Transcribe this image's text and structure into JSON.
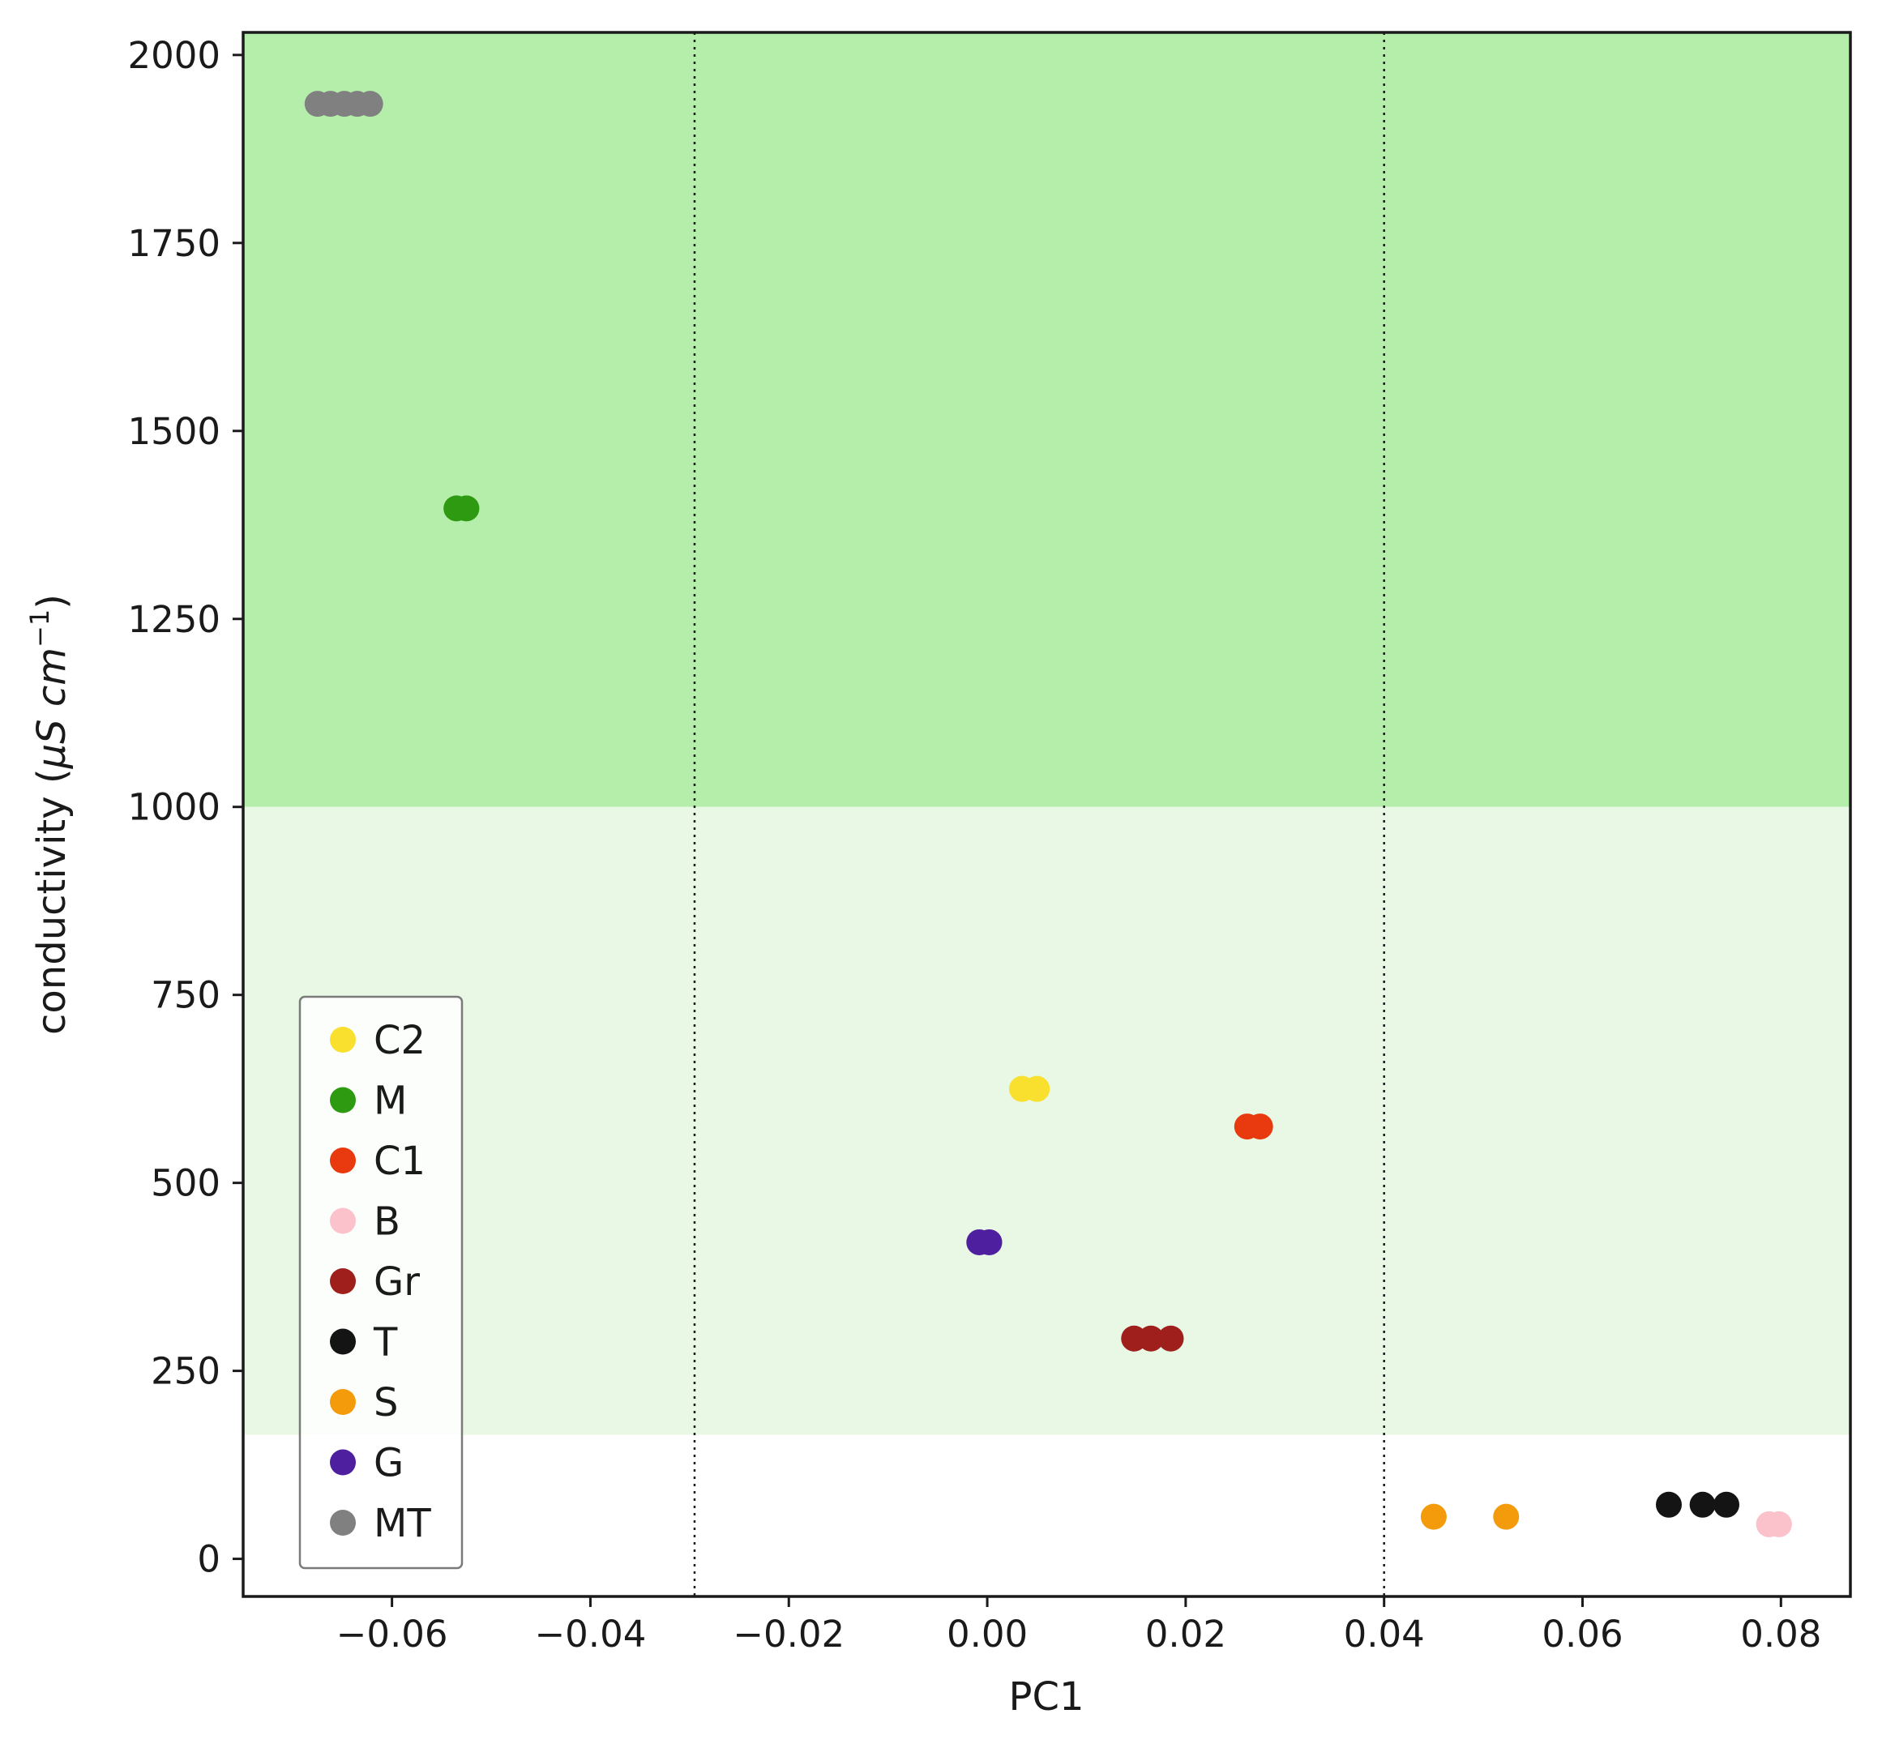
{
  "chart_data": {
    "type": "scatter",
    "xlabel": "PC1",
    "ylabel_prefix": "conductivity (",
    "ylabel_unit_mu": "μS",
    "ylabel_unit_cm": "cm",
    "ylabel_unit_exp": "−1",
    "ylabel_suffix": ")",
    "xlim": [
      -0.075,
      0.087
    ],
    "ylim": [
      -50,
      2030
    ],
    "xticks": [
      -0.06,
      -0.04,
      -0.02,
      0.0,
      0.02,
      0.04,
      0.06,
      0.08
    ],
    "xtick_labels": [
      "−0.06",
      "−0.04",
      "−0.02",
      "0.00",
      "0.02",
      "0.04",
      "0.06",
      "0.08"
    ],
    "yticks": [
      0,
      250,
      500,
      750,
      1000,
      1250,
      1500,
      1750,
      2000
    ],
    "ytick_labels": [
      "0",
      "250",
      "500",
      "750",
      "1000",
      "1250",
      "1500",
      "1750",
      "2000"
    ],
    "grid": false,
    "legend_position": "lower-left",
    "bands": [
      {
        "y0": 1000,
        "y1": 2030,
        "color": "#b5eeaa"
      },
      {
        "y0": 165,
        "y1": 1000,
        "color": "#e8f8e4"
      }
    ],
    "vlines": [
      -0.0295,
      0.04
    ],
    "series": [
      {
        "name": "C2",
        "color": "#f9e02e",
        "points": [
          [
            0.0035,
            625
          ],
          [
            0.005,
            625
          ]
        ]
      },
      {
        "name": "M",
        "color": "#2e9a12",
        "points": [
          [
            -0.0535,
            1397
          ],
          [
            -0.0525,
            1397
          ]
        ]
      },
      {
        "name": "C1",
        "color": "#e83a0e",
        "points": [
          [
            0.0262,
            575
          ],
          [
            0.0275,
            575
          ]
        ]
      },
      {
        "name": "B",
        "color": "#fbc2cb",
        "points": [
          [
            0.0788,
            46
          ],
          [
            0.0798,
            46
          ]
        ]
      },
      {
        "name": "Gr",
        "color": "#9e1f1b",
        "points": [
          [
            0.0148,
            293
          ],
          [
            0.0165,
            293
          ],
          [
            0.0185,
            293
          ]
        ]
      },
      {
        "name": "T",
        "color": "#141414",
        "points": [
          [
            0.0687,
            72
          ],
          [
            0.0721,
            72
          ],
          [
            0.0745,
            72
          ]
        ]
      },
      {
        "name": "S",
        "color": "#f49b0b",
        "points": [
          [
            0.045,
            56
          ],
          [
            0.0523,
            56
          ]
        ]
      },
      {
        "name": "G",
        "color": "#4e20a0",
        "points": [
          [
            -0.0008,
            421
          ],
          [
            0.0002,
            421
          ]
        ]
      },
      {
        "name": "MT",
        "color": "#808080",
        "points": [
          [
            -0.0675,
            1935
          ],
          [
            -0.0662,
            1935
          ],
          [
            -0.0648,
            1935
          ],
          [
            -0.0635,
            1935
          ],
          [
            -0.0622,
            1935
          ]
        ]
      }
    ]
  }
}
